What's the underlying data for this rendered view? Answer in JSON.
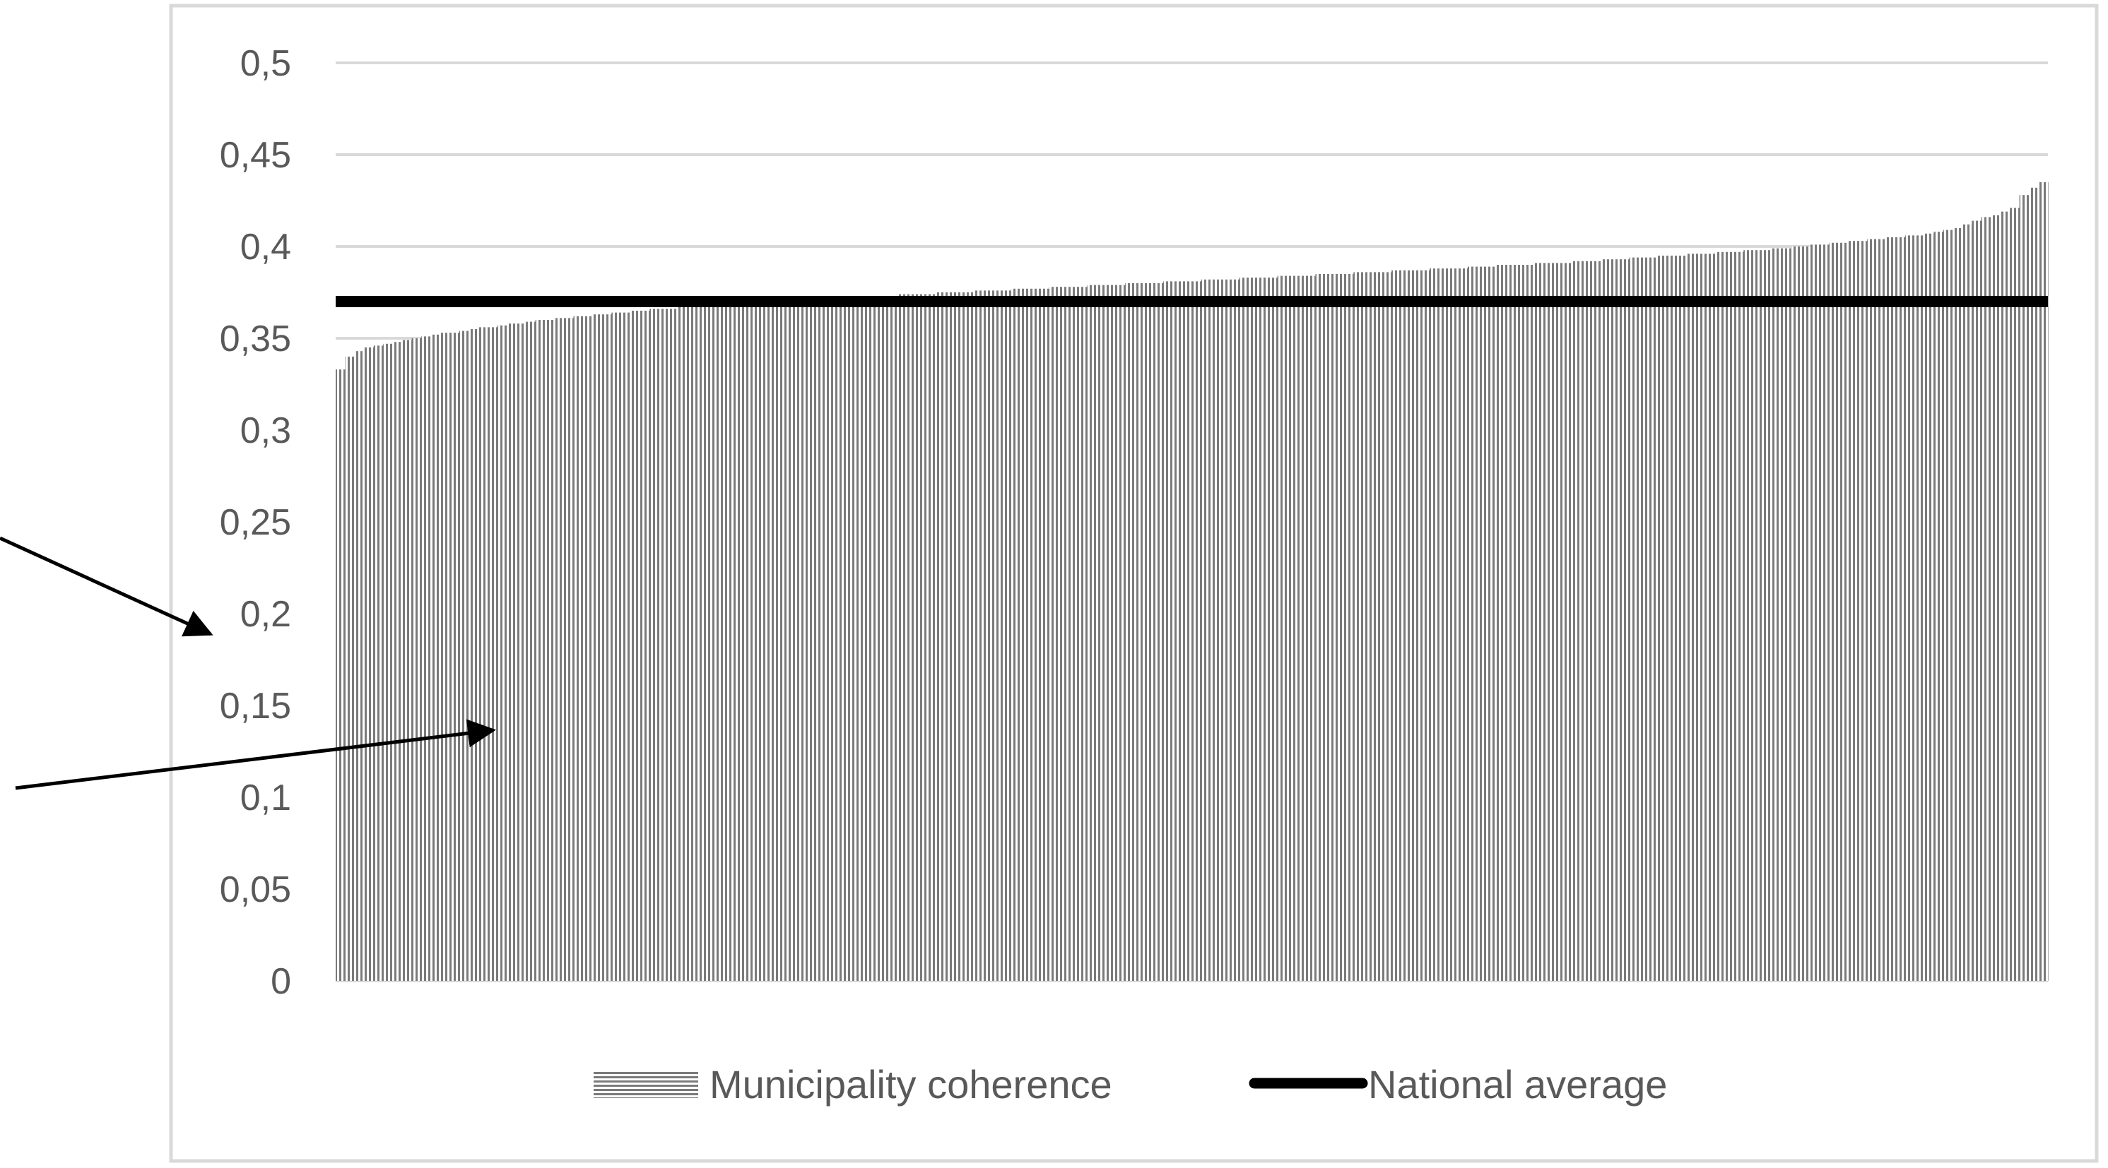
{
  "chart_data": {
    "type": "bar",
    "title": "",
    "xlabel": "",
    "ylabel": "",
    "ylim": [
      0,
      0.5
    ],
    "y_ticks": [
      "0",
      "0,05",
      "0,1",
      "0,15",
      "0,2",
      "0,25",
      "0,3",
      "0,35",
      "0,4",
      "0,45",
      "0,5"
    ],
    "grid": true,
    "legend_position": "bottom",
    "sorted": "ascending",
    "series": [
      {
        "name": "Municipality coherence",
        "style": "hatched-bars",
        "values": [
          0.333,
          0.34,
          0.343,
          0.345,
          0.346,
          0.347,
          0.348,
          0.349,
          0.35,
          0.351,
          0.352,
          0.353,
          0.353,
          0.354,
          0.355,
          0.356,
          0.356,
          0.357,
          0.358,
          0.358,
          0.359,
          0.36,
          0.36,
          0.361,
          0.361,
          0.362,
          0.362,
          0.363,
          0.363,
          0.364,
          0.364,
          0.365,
          0.365,
          0.366,
          0.366,
          0.366,
          0.367,
          0.367,
          0.367,
          0.368,
          0.368,
          0.368,
          0.369,
          0.369,
          0.369,
          0.37,
          0.37,
          0.37,
          0.371,
          0.371,
          0.371,
          0.372,
          0.372,
          0.372,
          0.372,
          0.373,
          0.373,
          0.373,
          0.373,
          0.374,
          0.374,
          0.374,
          0.374,
          0.375,
          0.375,
          0.375,
          0.375,
          0.376,
          0.376,
          0.376,
          0.376,
          0.377,
          0.377,
          0.377,
          0.377,
          0.378,
          0.378,
          0.378,
          0.378,
          0.379,
          0.379,
          0.379,
          0.379,
          0.38,
          0.38,
          0.38,
          0.38,
          0.381,
          0.381,
          0.381,
          0.381,
          0.382,
          0.382,
          0.382,
          0.382,
          0.383,
          0.383,
          0.383,
          0.383,
          0.384,
          0.384,
          0.384,
          0.384,
          0.385,
          0.385,
          0.385,
          0.385,
          0.386,
          0.386,
          0.386,
          0.386,
          0.387,
          0.387,
          0.387,
          0.387,
          0.388,
          0.388,
          0.388,
          0.388,
          0.389,
          0.389,
          0.389,
          0.39,
          0.39,
          0.39,
          0.39,
          0.391,
          0.391,
          0.391,
          0.391,
          0.392,
          0.392,
          0.392,
          0.393,
          0.393,
          0.393,
          0.394,
          0.394,
          0.394,
          0.395,
          0.395,
          0.395,
          0.396,
          0.396,
          0.396,
          0.397,
          0.397,
          0.397,
          0.398,
          0.398,
          0.398,
          0.399,
          0.399,
          0.4,
          0.4,
          0.401,
          0.401,
          0.402,
          0.402,
          0.403,
          0.403,
          0.404,
          0.404,
          0.405,
          0.405,
          0.406,
          0.406,
          0.407,
          0.408,
          0.409,
          0.41,
          0.412,
          0.414,
          0.416,
          0.417,
          0.419,
          0.421,
          0.428,
          0.432,
          0.435
        ]
      },
      {
        "name": "National average",
        "style": "thick-line",
        "value": 0.37
      }
    ]
  },
  "legend": {
    "municipality_label": "Municipality coherence",
    "national_label": "National average"
  },
  "colors": {
    "bar_stripe": "#7a7a7a",
    "average_line": "#000000",
    "gridline": "#d9d9d9",
    "frame": "#d9d9d9",
    "text": "#595959",
    "arrow": "#000000"
  },
  "annotations": {
    "arrows": 2
  }
}
